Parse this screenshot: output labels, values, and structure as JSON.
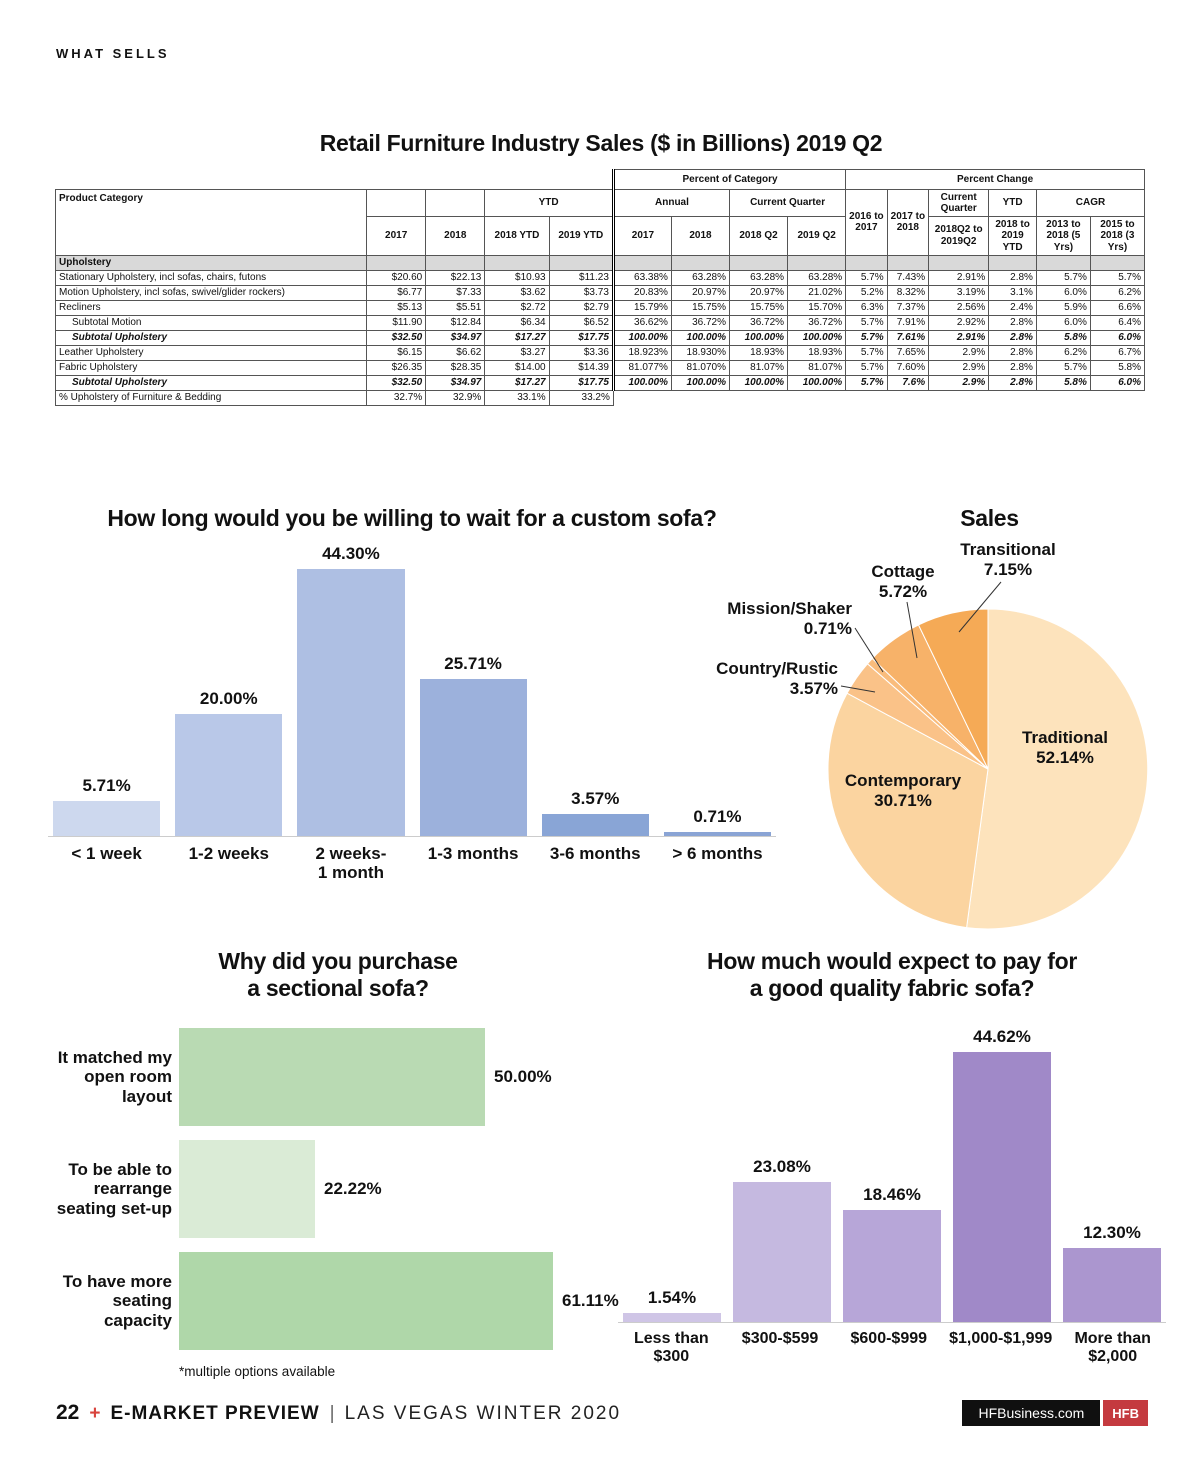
{
  "page": {
    "kicker": "WHAT SELLS",
    "footer": {
      "page_number": "22",
      "plus": "+",
      "brand": "E-MARKET PREVIEW",
      "divider": "|",
      "issue": "LAS VEGAS WINTER 2020",
      "site": "HFBusiness.com",
      "logo": "HFB",
      "accent_color": "#d8433c"
    }
  },
  "table": {
    "title": "Retail Furniture Industry Sales ($ in Billions) 2019 Q2",
    "header_rows": [
      [
        {
          "t": "",
          "cs": 5,
          "blank": true
        },
        {
          "t": "Percent of Category",
          "cs": 4,
          "dbl": true
        },
        {
          "t": "Percent Change",
          "cs": 6
        }
      ],
      [
        {
          "t": "Product Category",
          "rs": 2,
          "left": true
        },
        {
          "t": ""
        },
        {
          "t": ""
        },
        {
          "t": "YTD",
          "cs": 2
        },
        {
          "t": "Annual",
          "cs": 2,
          "dbl": true
        },
        {
          "t": "Current Quarter",
          "cs": 2
        },
        {
          "t": "2016 to 2017",
          "rs": 2
        },
        {
          "t": "2017 to 2018",
          "rs": 2
        },
        {
          "t": "Current Quarter"
        },
        {
          "t": "YTD"
        },
        {
          "t": "CAGR",
          "cs": 2
        }
      ],
      [
        {
          "t": "2017"
        },
        {
          "t": "2018"
        },
        {
          "t": "2018 YTD"
        },
        {
          "t": "2019 YTD"
        },
        {
          "t": "2017",
          "dbl": true
        },
        {
          "t": "2018"
        },
        {
          "t": "2018 Q2"
        },
        {
          "t": "2019 Q2"
        },
        {
          "t": "2018Q2 to 2019Q2"
        },
        {
          "t": "2018 to 2019 YTD"
        },
        {
          "t": "2013 to 2018 (5 Yrs)"
        },
        {
          "t": "2015 to 2018 (3 Yrs)"
        }
      ]
    ],
    "rows": [
      {
        "label": "Upholstery",
        "cls": "section",
        "values": [
          "",
          "",
          "",
          "",
          "",
          "",
          "",
          "",
          "",
          "",
          "",
          "",
          "",
          ""
        ]
      },
      {
        "label": "Stationary Upholstery, incl sofas, chairs, futons",
        "values": [
          "$20.60",
          "$22.13",
          "$10.93",
          "$11.23",
          "63.38%",
          "63.28%",
          "63.28%",
          "63.28%",
          "5.7%",
          "7.43%",
          "2.91%",
          "2.8%",
          "5.7%",
          "5.7%"
        ]
      },
      {
        "label": "Motion Upholstery, incl sofas, swivel/glider rockers)",
        "values": [
          "$6.77",
          "$7.33",
          "$3.62",
          "$3.73",
          "20.83%",
          "20.97%",
          "20.97%",
          "21.02%",
          "5.2%",
          "8.32%",
          "3.19%",
          "3.1%",
          "6.0%",
          "6.2%"
        ]
      },
      {
        "label": "Recliners",
        "values": [
          "$5.13",
          "$5.51",
          "$2.72",
          "$2.79",
          "15.79%",
          "15.75%",
          "15.75%",
          "15.70%",
          "6.3%",
          "7.37%",
          "2.56%",
          "2.4%",
          "5.9%",
          "6.6%"
        ]
      },
      {
        "label": "Subtotal Motion",
        "indent": true,
        "values": [
          "$11.90",
          "$12.84",
          "$6.34",
          "$6.52",
          "36.62%",
          "36.72%",
          "36.72%",
          "36.72%",
          "5.7%",
          "7.91%",
          "2.92%",
          "2.8%",
          "6.0%",
          "6.4%"
        ]
      },
      {
        "label": "Subtotal Upholstery",
        "cls": "subtotal",
        "indent": true,
        "values": [
          "$32.50",
          "$34.97",
          "$17.27",
          "$17.75",
          "100.00%",
          "100.00%",
          "100.00%",
          "100.00%",
          "5.7%",
          "7.61%",
          "2.91%",
          "2.8%",
          "5.8%",
          "6.0%"
        ]
      },
      {
        "label": "Leather Upholstery",
        "values": [
          "$6.15",
          "$6.62",
          "$3.27",
          "$3.36",
          "18.923%",
          "18.930%",
          "18.93%",
          "18.93%",
          "5.7%",
          "7.65%",
          "2.9%",
          "2.8%",
          "6.2%",
          "6.7%"
        ]
      },
      {
        "label": "Fabric Upholstery",
        "values": [
          "$26.35",
          "$28.35",
          "$14.00",
          "$14.39",
          "81.077%",
          "81.070%",
          "81.07%",
          "81.07%",
          "5.7%",
          "7.60%",
          "2.9%",
          "2.8%",
          "5.7%",
          "5.8%"
        ]
      },
      {
        "label": "Subtotal Upholstery",
        "cls": "subtotal",
        "indent": true,
        "values": [
          "$32.50",
          "$34.97",
          "$17.27",
          "$17.75",
          "100.00%",
          "100.00%",
          "100.00%",
          "100.00%",
          "5.7%",
          "7.6%",
          "2.9%",
          "2.8%",
          "5.8%",
          "6.0%"
        ]
      },
      {
        "label": "% Upholstery of Furniture & Bedding",
        "cls": "partial",
        "values": [
          "32.7%",
          "32.9%",
          "33.1%",
          "33.2%",
          "",
          "",
          "",
          "",
          "",
          "",
          "",
          "",
          "",
          ""
        ]
      }
    ]
  },
  "chart_data": [
    {
      "id": "wait-time",
      "type": "bar",
      "title": "How long would you be willing to wait for a custom sofa?",
      "categories": [
        "< 1 week",
        "1-2 weeks",
        "2 weeks-\n1 month",
        "1-3 months",
        "3-6 months",
        "> 6 months"
      ],
      "values": [
        5.71,
        20.0,
        44.3,
        25.71,
        3.57,
        0.71
      ],
      "value_labels": [
        "5.71%",
        "20.00%",
        "44.30%",
        "25.71%",
        "3.57%",
        "0.71%"
      ],
      "bar_colors": [
        "#cdd8ee",
        "#b9c8e8",
        "#aebfe3",
        "#9cb1dc",
        "#89a5d6",
        "#8aa4d5"
      ],
      "xlabel": "",
      "ylabel": "",
      "ylim": [
        0,
        50
      ],
      "grid": false,
      "legend": "none"
    },
    {
      "id": "sales-style",
      "type": "pie",
      "title": "Sales",
      "direction": "clockwise",
      "start_angle": "12 o'clock",
      "slices": [
        {
          "label": "Traditional",
          "value": 52.14,
          "display": "Traditional\n52.14%",
          "color": "#fde3bc"
        },
        {
          "label": "Contemporary",
          "value": 30.71,
          "display": "Contemporary\n30.71%",
          "color": "#fbd4a0"
        },
        {
          "label": "Country/Rustic",
          "value": 3.57,
          "display": "Country/Rustic\n3.57%",
          "color": "#fac288"
        },
        {
          "label": "Mission/Shaker",
          "value": 0.71,
          "display": "Mission/Shaker\n0.71%",
          "color": "#f9bc7c"
        },
        {
          "label": "Cottage",
          "value": 5.72,
          "display": "Cottage\n5.72%",
          "color": "#f7b269"
        },
        {
          "label": "Transitional",
          "value": 7.15,
          "display": "Transitional\n7.15%",
          "color": "#f5aa56"
        }
      ]
    },
    {
      "id": "sectional-reasons",
      "type": "bar-horizontal",
      "title": "Why did you purchase\na sectional sofa?",
      "categories": [
        "It matched my\nopen room layout",
        "To be able to\nrearrange\nseating set-up",
        "To have more\nseating capacity"
      ],
      "values": [
        50.0,
        22.22,
        61.11
      ],
      "value_labels": [
        "50.00%",
        "22.22%",
        "61.11%"
      ],
      "bar_colors": [
        "#b9dab3",
        "#daebd6",
        "#afd7a9"
      ],
      "footnote": "*multiple options available",
      "xlim": [
        0,
        70
      ],
      "grid": false,
      "legend": "none"
    },
    {
      "id": "sofa-price",
      "type": "bar",
      "title": "How much would expect to pay for\na good quality fabric sofa?",
      "categories": [
        "Less than\n$300",
        "$300-$599",
        "$600-$999",
        "$1,000-$1,999",
        "More than\n$2,000"
      ],
      "values": [
        1.54,
        23.08,
        18.46,
        44.62,
        12.3
      ],
      "value_labels": [
        "1.54%",
        "23.08%",
        "18.46%",
        "44.62%",
        "12.30%"
      ],
      "bar_colors": [
        "#cfc5e6",
        "#c5b9e0",
        "#b7a6d8",
        "#a089c8",
        "#ab96cf"
      ],
      "xlabel": "",
      "ylabel": "",
      "ylim": [
        0,
        50
      ],
      "grid": false,
      "legend": "none"
    }
  ]
}
